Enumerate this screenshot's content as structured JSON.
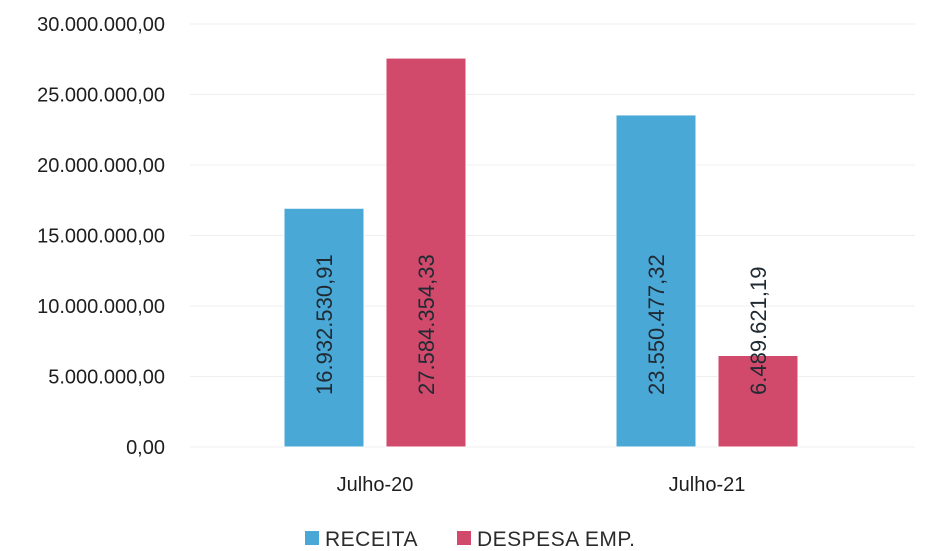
{
  "chart_data": {
    "type": "bar",
    "categories": [
      "Julho-20",
      "Julho-21"
    ],
    "series": [
      {
        "name": "RECEITA",
        "values": [
          16932530.91,
          23550477.32
        ],
        "labels": [
          "16.932.530,91",
          "23.550.477,32"
        ],
        "color": "#4aa8d6"
      },
      {
        "name": "DESPESA EMP.",
        "values": [
          27584354.33,
          6489621.19
        ],
        "labels": [
          "27.584.354,33",
          "6.489.621,19"
        ],
        "color": "#d14a6b"
      }
    ],
    "y_ticks": [
      "0,00",
      "5.000.000,00",
      "10.000.000,00",
      "15.000.000,00",
      "20.000.000,00",
      "25.000.000,00",
      "30.000.000,00"
    ],
    "ylim": [
      0,
      30000000
    ],
    "grid": true,
    "legend": "bottom-center"
  }
}
